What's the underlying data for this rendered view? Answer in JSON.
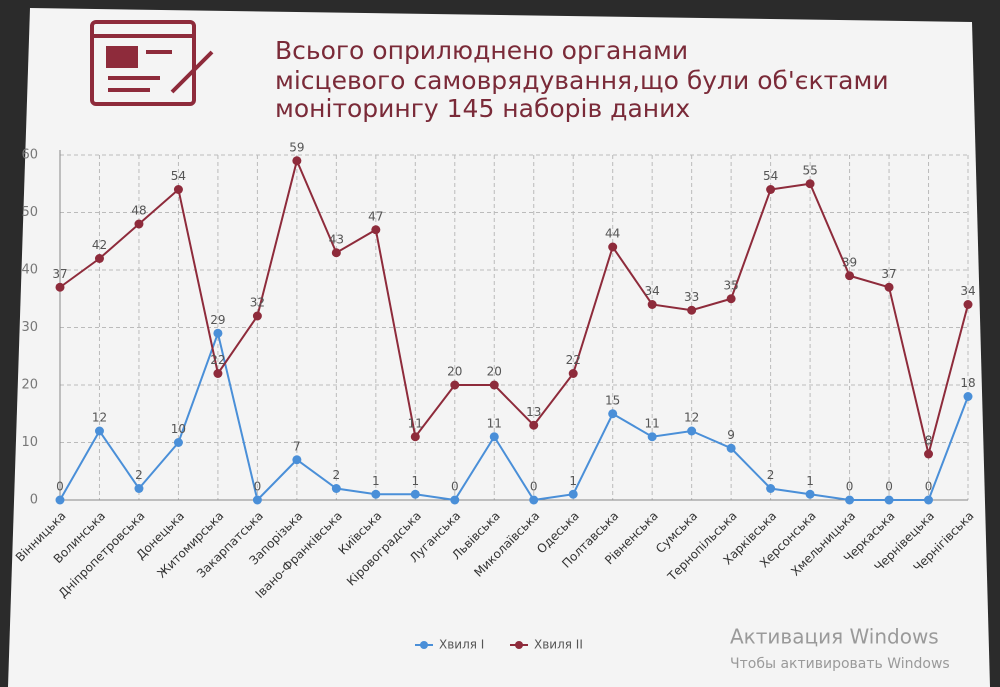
{
  "chart_data": {
    "type": "line",
    "title": [
      "Всього оприлюднено органами",
      "місцевого самоврядування,що були об'єктами",
      "моніторингу 145 наборів даних"
    ],
    "categories": [
      "Вінницька",
      "Волинська",
      "Дніпропетровська",
      "Донецька",
      "Житомирська",
      "Закарпатська",
      "Запорізька",
      "Івано-Франківська",
      "Київська",
      "Кіровоградська",
      "Луганська",
      "Львівська",
      "Миколаївська",
      "Одеська",
      "Полтавська",
      "Рівненська",
      "Сумська",
      "Тернопільська",
      "Харківська",
      "Херсонська",
      "Хмельницька",
      "Черкаська",
      "Чернівецька",
      "Чернігівська"
    ],
    "series": [
      {
        "name": "Хвиля І",
        "color": "#4a8fd8",
        "values": [
          0,
          12,
          2,
          10,
          29,
          0,
          7,
          2,
          1,
          1,
          0,
          11,
          0,
          1,
          15,
          11,
          12,
          9,
          2,
          1,
          0,
          0,
          0,
          18
        ]
      },
      {
        "name": "Хвиля ІІ",
        "color": "#8e2b3b",
        "values": [
          37,
          42,
          48,
          54,
          22,
          32,
          59,
          43,
          47,
          11,
          20,
          20,
          13,
          22,
          44,
          34,
          33,
          35,
          54,
          55,
          39,
          37,
          8,
          34
        ]
      }
    ],
    "ylim": [
      0,
      60
    ],
    "yticks": [
      0,
      10,
      20,
      30,
      40,
      50,
      60
    ],
    "grid": true,
    "legend": "bottom"
  },
  "watermark": [
    "Активация Windows",
    "Чтобы активировать Windows"
  ]
}
